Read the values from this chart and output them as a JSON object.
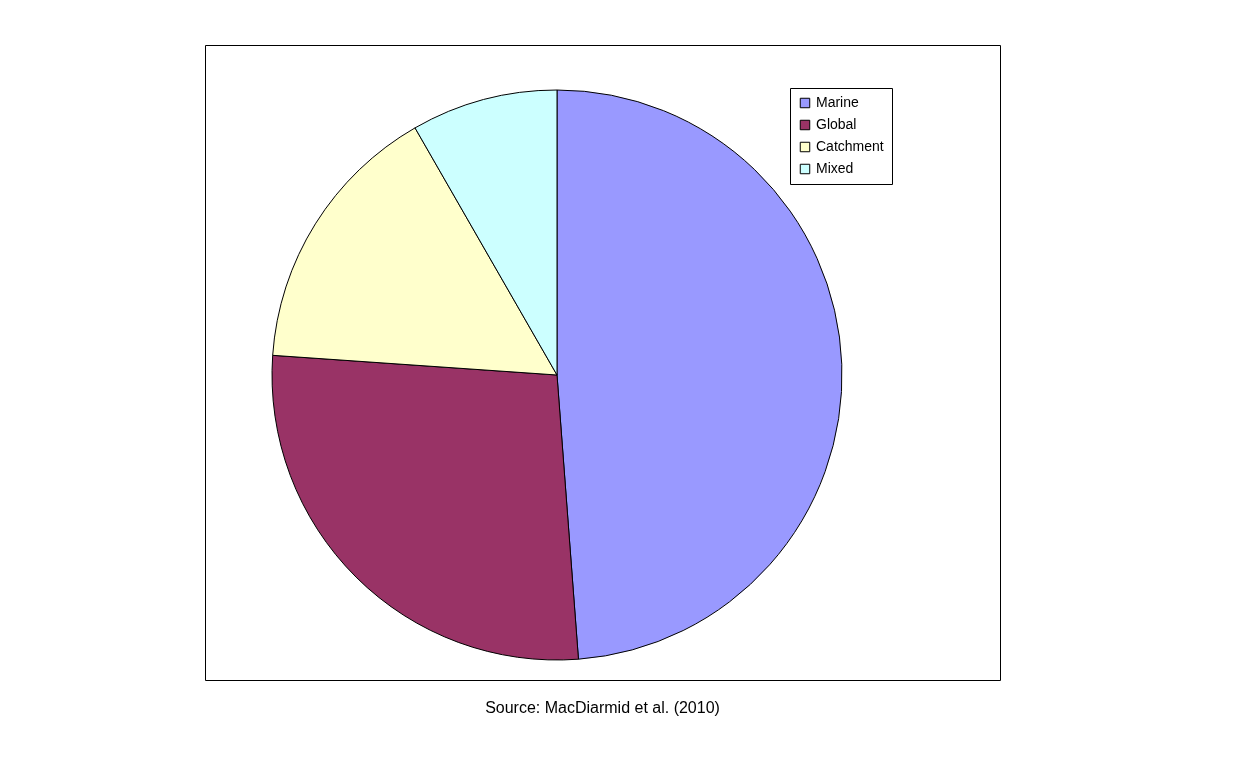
{
  "chart_data": {
    "type": "pie",
    "categories": [
      "Marine",
      "Global",
      "Catchment",
      "Mixed"
    ],
    "values": [
      48.8,
      27.3,
      15.6,
      8.3
    ],
    "colors": [
      "#9999ff",
      "#993366",
      "#ffffcc",
      "#ccffff"
    ],
    "legend": "top right",
    "annotations": [
      "Source: MacDiarmid et al. (2010)"
    ]
  }
}
